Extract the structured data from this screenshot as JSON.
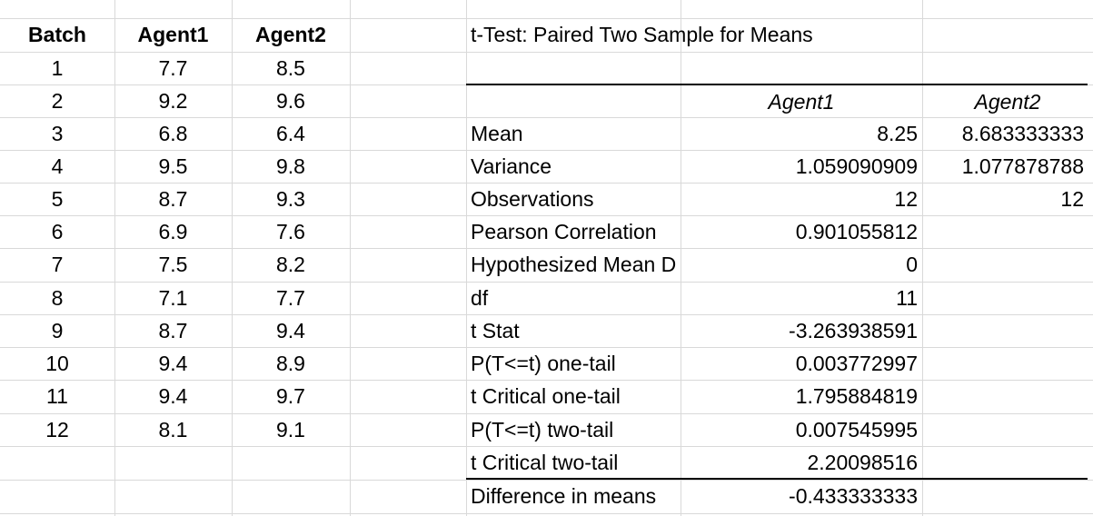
{
  "batch_table": {
    "headers": [
      "Batch",
      "Agent1",
      "Agent2"
    ],
    "rows": [
      [
        "1",
        "7.7",
        "8.5"
      ],
      [
        "2",
        "9.2",
        "9.6"
      ],
      [
        "3",
        "6.8",
        "6.4"
      ],
      [
        "4",
        "9.5",
        "9.8"
      ],
      [
        "5",
        "8.7",
        "9.3"
      ],
      [
        "6",
        "6.9",
        "7.6"
      ],
      [
        "7",
        "7.5",
        "8.2"
      ],
      [
        "8",
        "7.1",
        "7.7"
      ],
      [
        "9",
        "8.7",
        "9.4"
      ],
      [
        "10",
        "9.4",
        "8.9"
      ],
      [
        "11",
        "9.4",
        "9.7"
      ],
      [
        "12",
        "8.1",
        "9.1"
      ]
    ]
  },
  "ttest": {
    "title": "t-Test: Paired Two Sample for Means",
    "col_headers": [
      "Agent1",
      "Agent2"
    ],
    "rows": [
      {
        "label": "Mean",
        "v1": "8.25",
        "v2": "8.683333333"
      },
      {
        "label": "Variance",
        "v1": "1.059090909",
        "v2": "1.077878788"
      },
      {
        "label": "Observations",
        "v1": "12",
        "v2": "12"
      },
      {
        "label": "Pearson Correlation",
        "v1": "0.901055812",
        "v2": ""
      },
      {
        "label": "Hypothesized Mean D",
        "v1": "0",
        "v2": ""
      },
      {
        "label": "df",
        "v1": "11",
        "v2": ""
      },
      {
        "label": "t Stat",
        "v1": "-3.263938591",
        "v2": ""
      },
      {
        "label": "P(T<=t) one-tail",
        "v1": "0.003772997",
        "v2": ""
      },
      {
        "label": "t Critical one-tail",
        "v1": "1.795884819",
        "v2": ""
      },
      {
        "label": "P(T<=t) two-tail",
        "v1": "0.007545995",
        "v2": ""
      },
      {
        "label": "t Critical two-tail",
        "v1": "2.20098516",
        "v2": ""
      },
      {
        "label": "Difference in means",
        "v1": "-0.433333333",
        "v2": ""
      }
    ]
  }
}
